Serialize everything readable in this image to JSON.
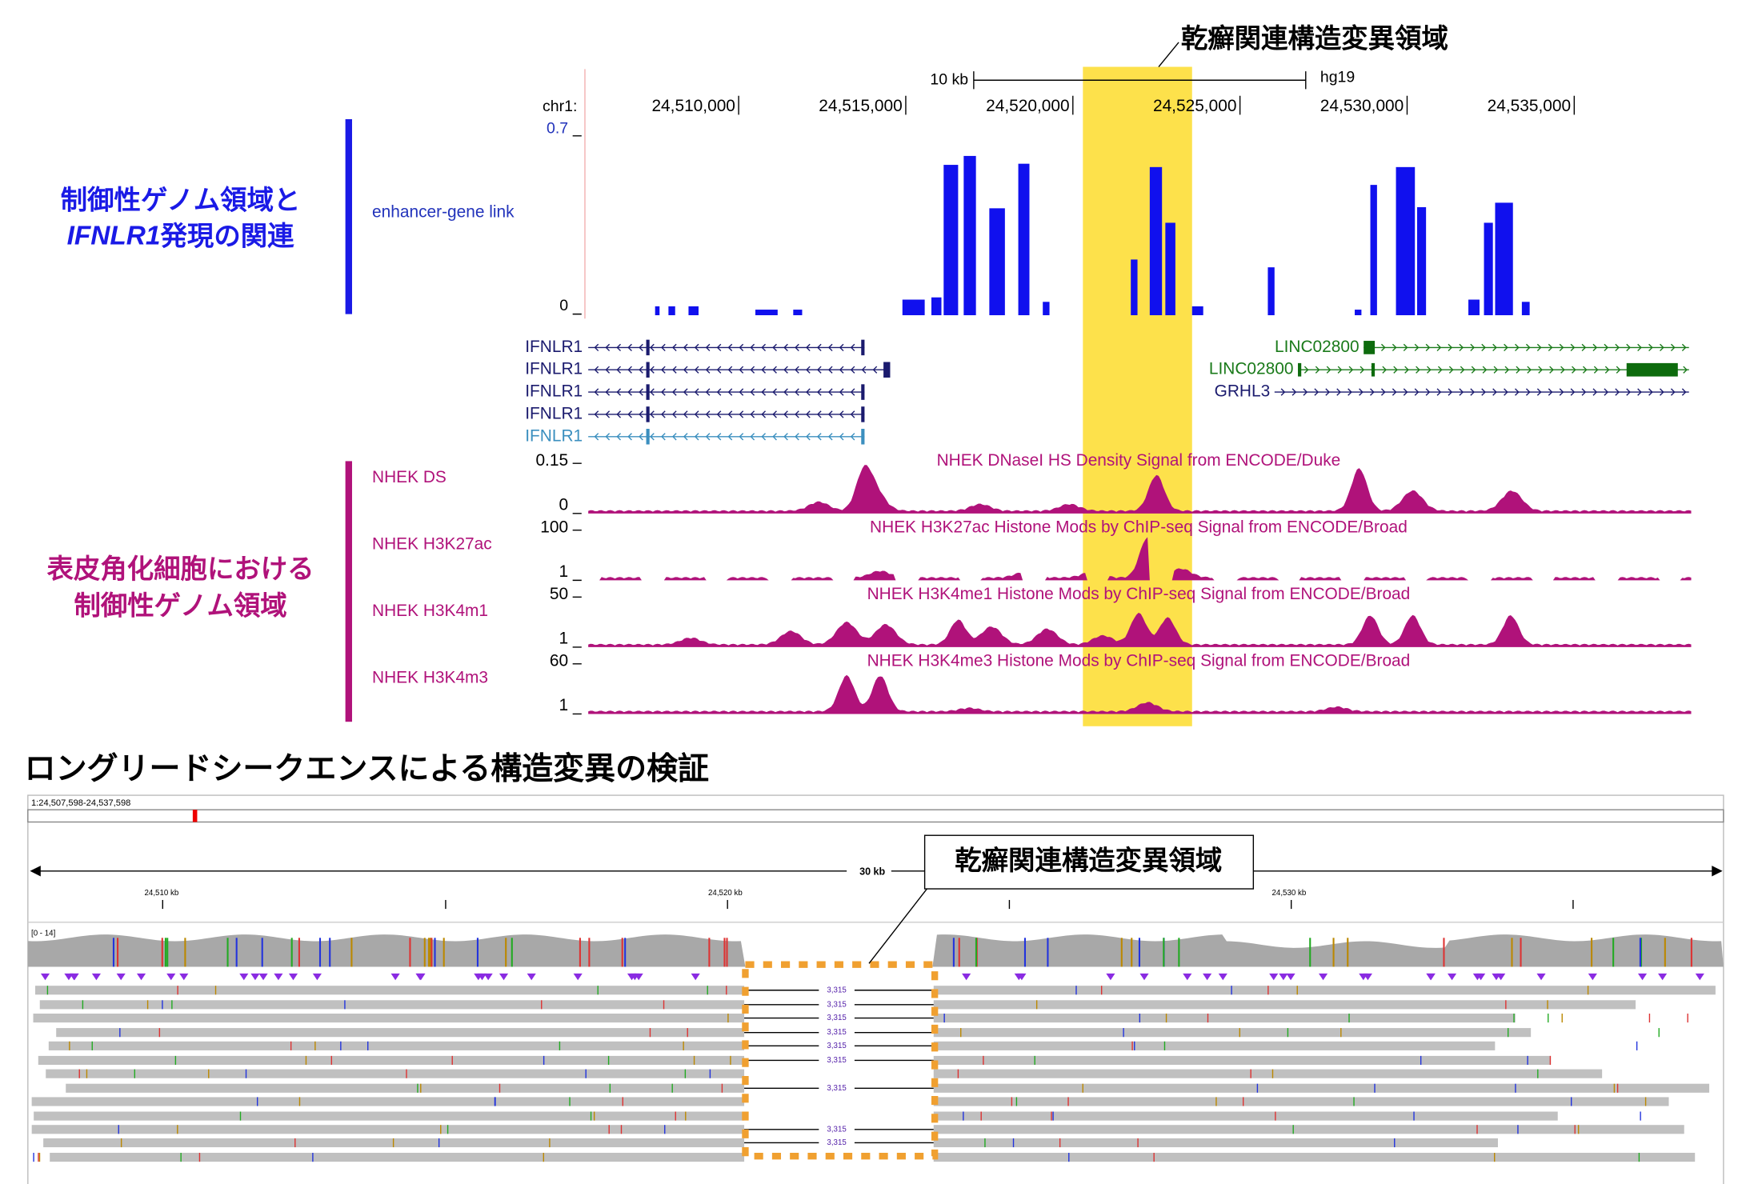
{
  "top_label": "乾癬関連構造変異領域",
  "ruler": {
    "scale": "10 kb",
    "assembly": "hg19",
    "chrom": "chr1:",
    "positions": [
      "24,510,000",
      "24,515,000",
      "24,520,000",
      "24,525,000",
      "24,530,000",
      "24,535,000"
    ]
  },
  "enhancer": {
    "heading_line1": "制御性ゲノム領域と",
    "heading_italic": "IFNLR1",
    "heading_rest": "発現の関連",
    "track": "enhancer-gene link",
    "ymax": "0.7",
    "ymin": "0"
  },
  "genes": [
    {
      "name": "IFNLR1"
    },
    {
      "name": "IFNLR1"
    },
    {
      "name": "IFNLR1"
    },
    {
      "name": "IFNLR1"
    },
    {
      "name": "IFNLR1"
    },
    {
      "name": "LINC02800"
    },
    {
      "name": "LINC02800"
    },
    {
      "name": "GRHL3"
    }
  ],
  "keratinocyte": {
    "heading_line1": "表皮角化細胞における",
    "heading_line2": "制御性ゲノム領域",
    "tracks": [
      {
        "label": "NHEK DS",
        "title": "NHEK DNaseI HS Density Signal from ENCODE/Duke",
        "ymax": "0.15",
        "ymin": "0"
      },
      {
        "label": "NHEK H3K27ac",
        "title": "NHEK H3K27ac Histone Mods by ChIP-seq Signal from ENCODE/Broad",
        "ymax": "100",
        "ymin": "1"
      },
      {
        "label": "NHEK H3K4m1",
        "title": "NHEK H3K4me1 Histone Mods by ChIP-seq Signal from ENCODE/Broad",
        "ymax": "50",
        "ymin": "1"
      },
      {
        "label": "NHEK H3K4m3",
        "title": "NHEK H3K4me3 Histone Mods by ChIP-seq Signal from ENCODE/Broad",
        "ymax": "60",
        "ymin": "1"
      }
    ]
  },
  "longread": {
    "title": "ロングリードシークエンスによる構造変異の検証",
    "locus": "1:24,507,598-24,537,598",
    "span": "30 kb",
    "ticks": [
      "24,510 kb",
      "24,520 kb",
      "24,530 kb"
    ],
    "coverage_range": "[0 - 14]",
    "callout": "乾癬関連構造変異領域",
    "deletion_labels": [
      "3,315",
      "3,315",
      "3,315",
      "3,315",
      "3,315",
      "3,315",
      "3,315",
      "3,315",
      "3,315"
    ]
  }
}
